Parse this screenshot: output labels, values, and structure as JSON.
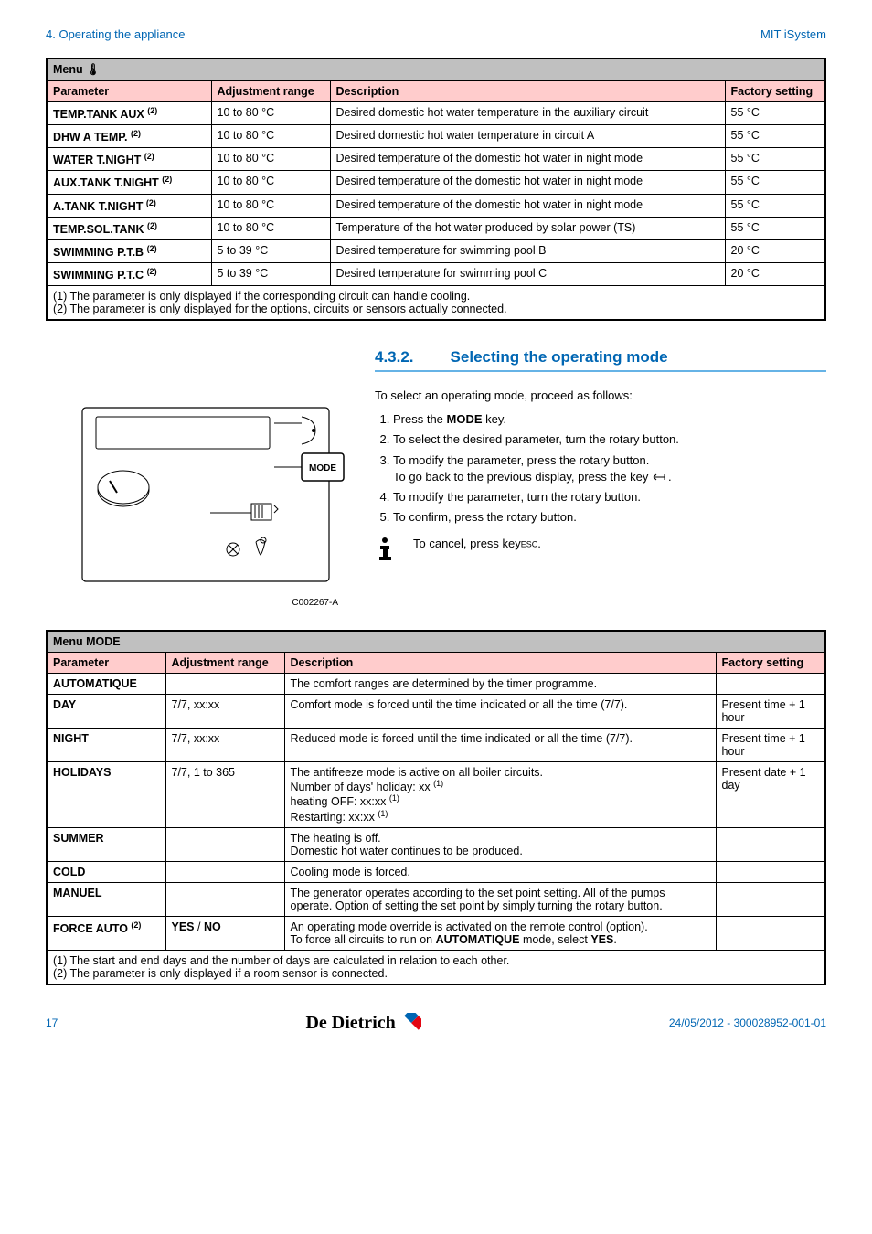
{
  "header": {
    "left": "4.  Operating the appliance",
    "right": "MIT iSystem"
  },
  "table1": {
    "title": "Menu 🌡",
    "columns": [
      "Parameter",
      "Adjustment range",
      "Description",
      "Factory setting"
    ],
    "rows": [
      {
        "param": "TEMP.TANK AUX",
        "sup": "(2)",
        "range": "10 to 80 °C",
        "desc": "Desired domestic hot water temperature in the auxiliary circuit",
        "factory": "55 °C"
      },
      {
        "param": "DHW A TEMP.",
        "sup": "(2)",
        "range": "10 to 80 °C",
        "desc": "Desired domestic hot water temperature in circuit A",
        "factory": "55 °C"
      },
      {
        "param": "WATER T.NIGHT",
        "sup": "(2)",
        "range": "10 to 80 °C",
        "desc": "Desired temperature of the domestic hot water in night mode",
        "factory": "55 °C"
      },
      {
        "param": "AUX.TANK T.NIGHT",
        "sup": "(2)",
        "range": "10 to 80 °C",
        "desc": "Desired temperature of the domestic hot water in night mode",
        "factory": "55 °C"
      },
      {
        "param": "A.TANK T.NIGHT",
        "sup": "(2)",
        "range": "10 to 80 °C",
        "desc": "Desired temperature of the domestic hot water in night mode",
        "factory": "55 °C"
      },
      {
        "param": "TEMP.SOL.TANK",
        "sup": "(2)",
        "range": "10 to 80 °C",
        "desc": "Temperature of the hot water produced by solar power (TS)",
        "factory": "55 °C"
      },
      {
        "param": "SWIMMING P.T.B",
        "sup": "(2)",
        "range": "5 to 39 °C",
        "desc": "Desired temperature for swimming pool B",
        "factory": "20 °C"
      },
      {
        "param": "SWIMMING P.T.C",
        "sup": "(2)",
        "range": "5 to 39 °C",
        "desc": "Desired temperature for swimming pool C",
        "factory": "20 °C"
      }
    ],
    "foot1": "(1)  The parameter is only displayed if the corresponding circuit can handle cooling.",
    "foot2": "(2)  The parameter is only displayed for the options, circuits or sensors actually connected."
  },
  "section": {
    "num": "4.3.2.",
    "title": "Selecting the operating mode",
    "intro": "To select an operating mode, proceed as follows:",
    "step1a": "Press the ",
    "step1b": "MODE",
    "step1c": " key.",
    "step2": "To select the desired parameter, turn the rotary button.",
    "step3a": "To modify the parameter, press the rotary button.",
    "step3b": "To go back to the previous display, press the key ",
    "step4": "To modify the parameter, turn the rotary button.",
    "step5": "To confirm, press the rotary button.",
    "cancel": "To cancel, press key",
    "cancelkey": "ESC",
    "diagram_label": "C002267-A",
    "mode_label": "MODE"
  },
  "table2": {
    "title": "Menu MODE",
    "columns": [
      "Parameter",
      "Adjustment range",
      "Description",
      "Factory setting"
    ],
    "rows": [
      {
        "param": "AUTOMATIQUE",
        "range": "",
        "desc": "The comfort ranges are determined by the timer programme.",
        "factory": ""
      },
      {
        "param": "DAY",
        "range": "7/7, xx:xx",
        "desc": "Comfort mode is forced until the time indicated or all the time (7/7).",
        "factory": "Present time + 1 hour"
      },
      {
        "param": "NIGHT",
        "range": "7/7, xx:xx",
        "desc": "Reduced mode is forced until the time indicated or all the time (7/7).",
        "factory": "Present time + 1 hour"
      },
      {
        "param": "HOLIDAYS",
        "range": "7/7, 1 to 365",
        "desc_html": "The antifreeze mode is active on all boiler circuits.<br>Number of days' holiday: xx <sup>(1)</sup><br>heating OFF: xx:xx <sup>(1)</sup><br>Restarting: xx:xx <sup>(1)</sup>",
        "factory": "Present date + 1 day"
      },
      {
        "param": "SUMMER",
        "range": "",
        "desc_html": "The heating is off.<br>Domestic hot water continues to be produced.",
        "factory": ""
      },
      {
        "param": "COLD",
        "range": "",
        "desc": "Cooling mode is forced.",
        "factory": ""
      },
      {
        "param": "MANUEL",
        "range": "",
        "desc": "The generator operates according to the set point setting. All of the pumps operate. Option of setting the set point by simply turning the rotary button.",
        "factory": ""
      },
      {
        "param": "FORCE AUTO",
        "sup": "(2)",
        "range_html": "<b>YES</b> / <b>NO</b>",
        "desc_html": "An operating mode override is activated on the remote control (option).<br>To force all circuits to run on <b>AUTOMATIQUE</b> mode, select <b>YES</b>.",
        "factory": ""
      }
    ],
    "foot1": "(1)  The start and end days and the number of days are calculated in relation to each other.",
    "foot2": "(2)  The parameter is only displayed if a room sensor is connected."
  },
  "footer": {
    "page": "17",
    "logo": "De Dietrich",
    "right": "24/05/2012  - 300028952-001-01"
  }
}
